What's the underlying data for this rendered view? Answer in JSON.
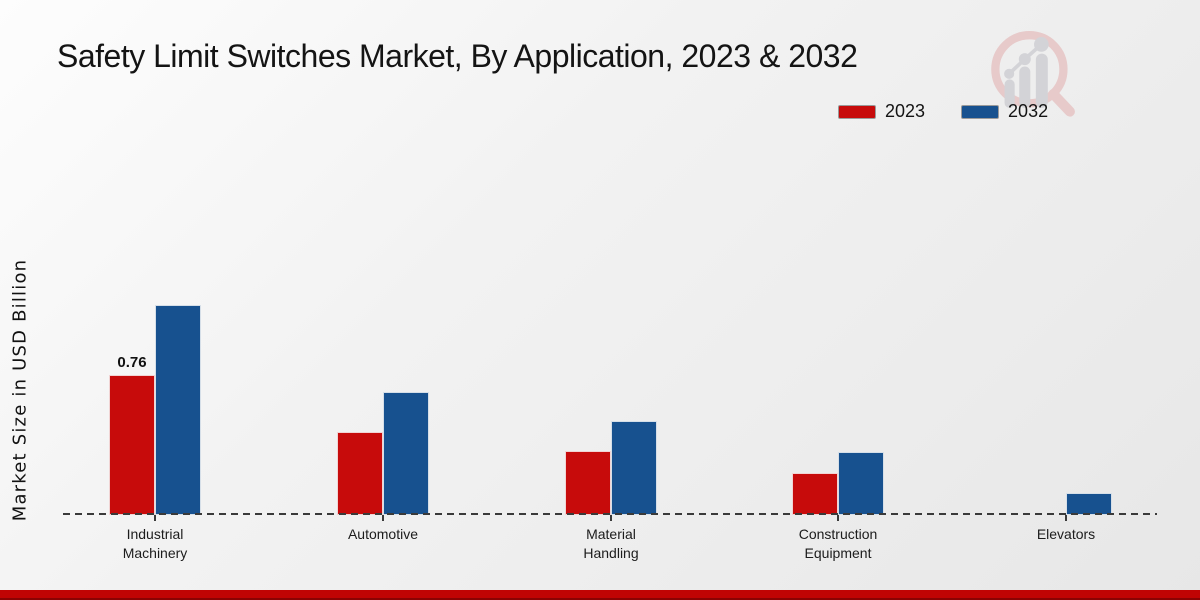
{
  "title": "Safety Limit Switches Market, By Application, 2023 & 2032",
  "legend": [
    {
      "label": "2023",
      "color": "#c70b0b"
    },
    {
      "label": "2032",
      "color": "#17518f"
    }
  ],
  "colors": {
    "series_2023": "#c70b0b",
    "series_2032": "#17518f",
    "footer_strip": "#c00404",
    "axis_dash": "#3a3a3a",
    "background_light": "#fdfdfd",
    "background_dark": "#e7e7e7"
  },
  "watermark_icon": "magnifier-growth-chart-logo",
  "chart_data": {
    "type": "bar",
    "title": "Safety Limit Switches Market, By Application, 2023 & 2032",
    "ylabel": "Market Size in USD Billion",
    "xlabel": "",
    "categories": [
      "Industrial Machinery",
      "Automotive",
      "Material Handling",
      "Construction Equipment",
      "Elevators"
    ],
    "series": [
      {
        "name": "2023",
        "color": "#c70b0b",
        "values": [
          0.76,
          0.45,
          0.35,
          0.23,
          0
        ]
      },
      {
        "name": "2032",
        "color": "#17518f",
        "values": [
          1.14,
          0.67,
          0.51,
          0.34,
          0.12
        ]
      }
    ],
    "data_labels": [
      {
        "series": "2023",
        "category": "Industrial Machinery",
        "text": "0.76"
      }
    ],
    "ylim": [
      0,
      1.25
    ],
    "grid": false,
    "baseline_style": "dashed",
    "legend_position": "top-right"
  }
}
